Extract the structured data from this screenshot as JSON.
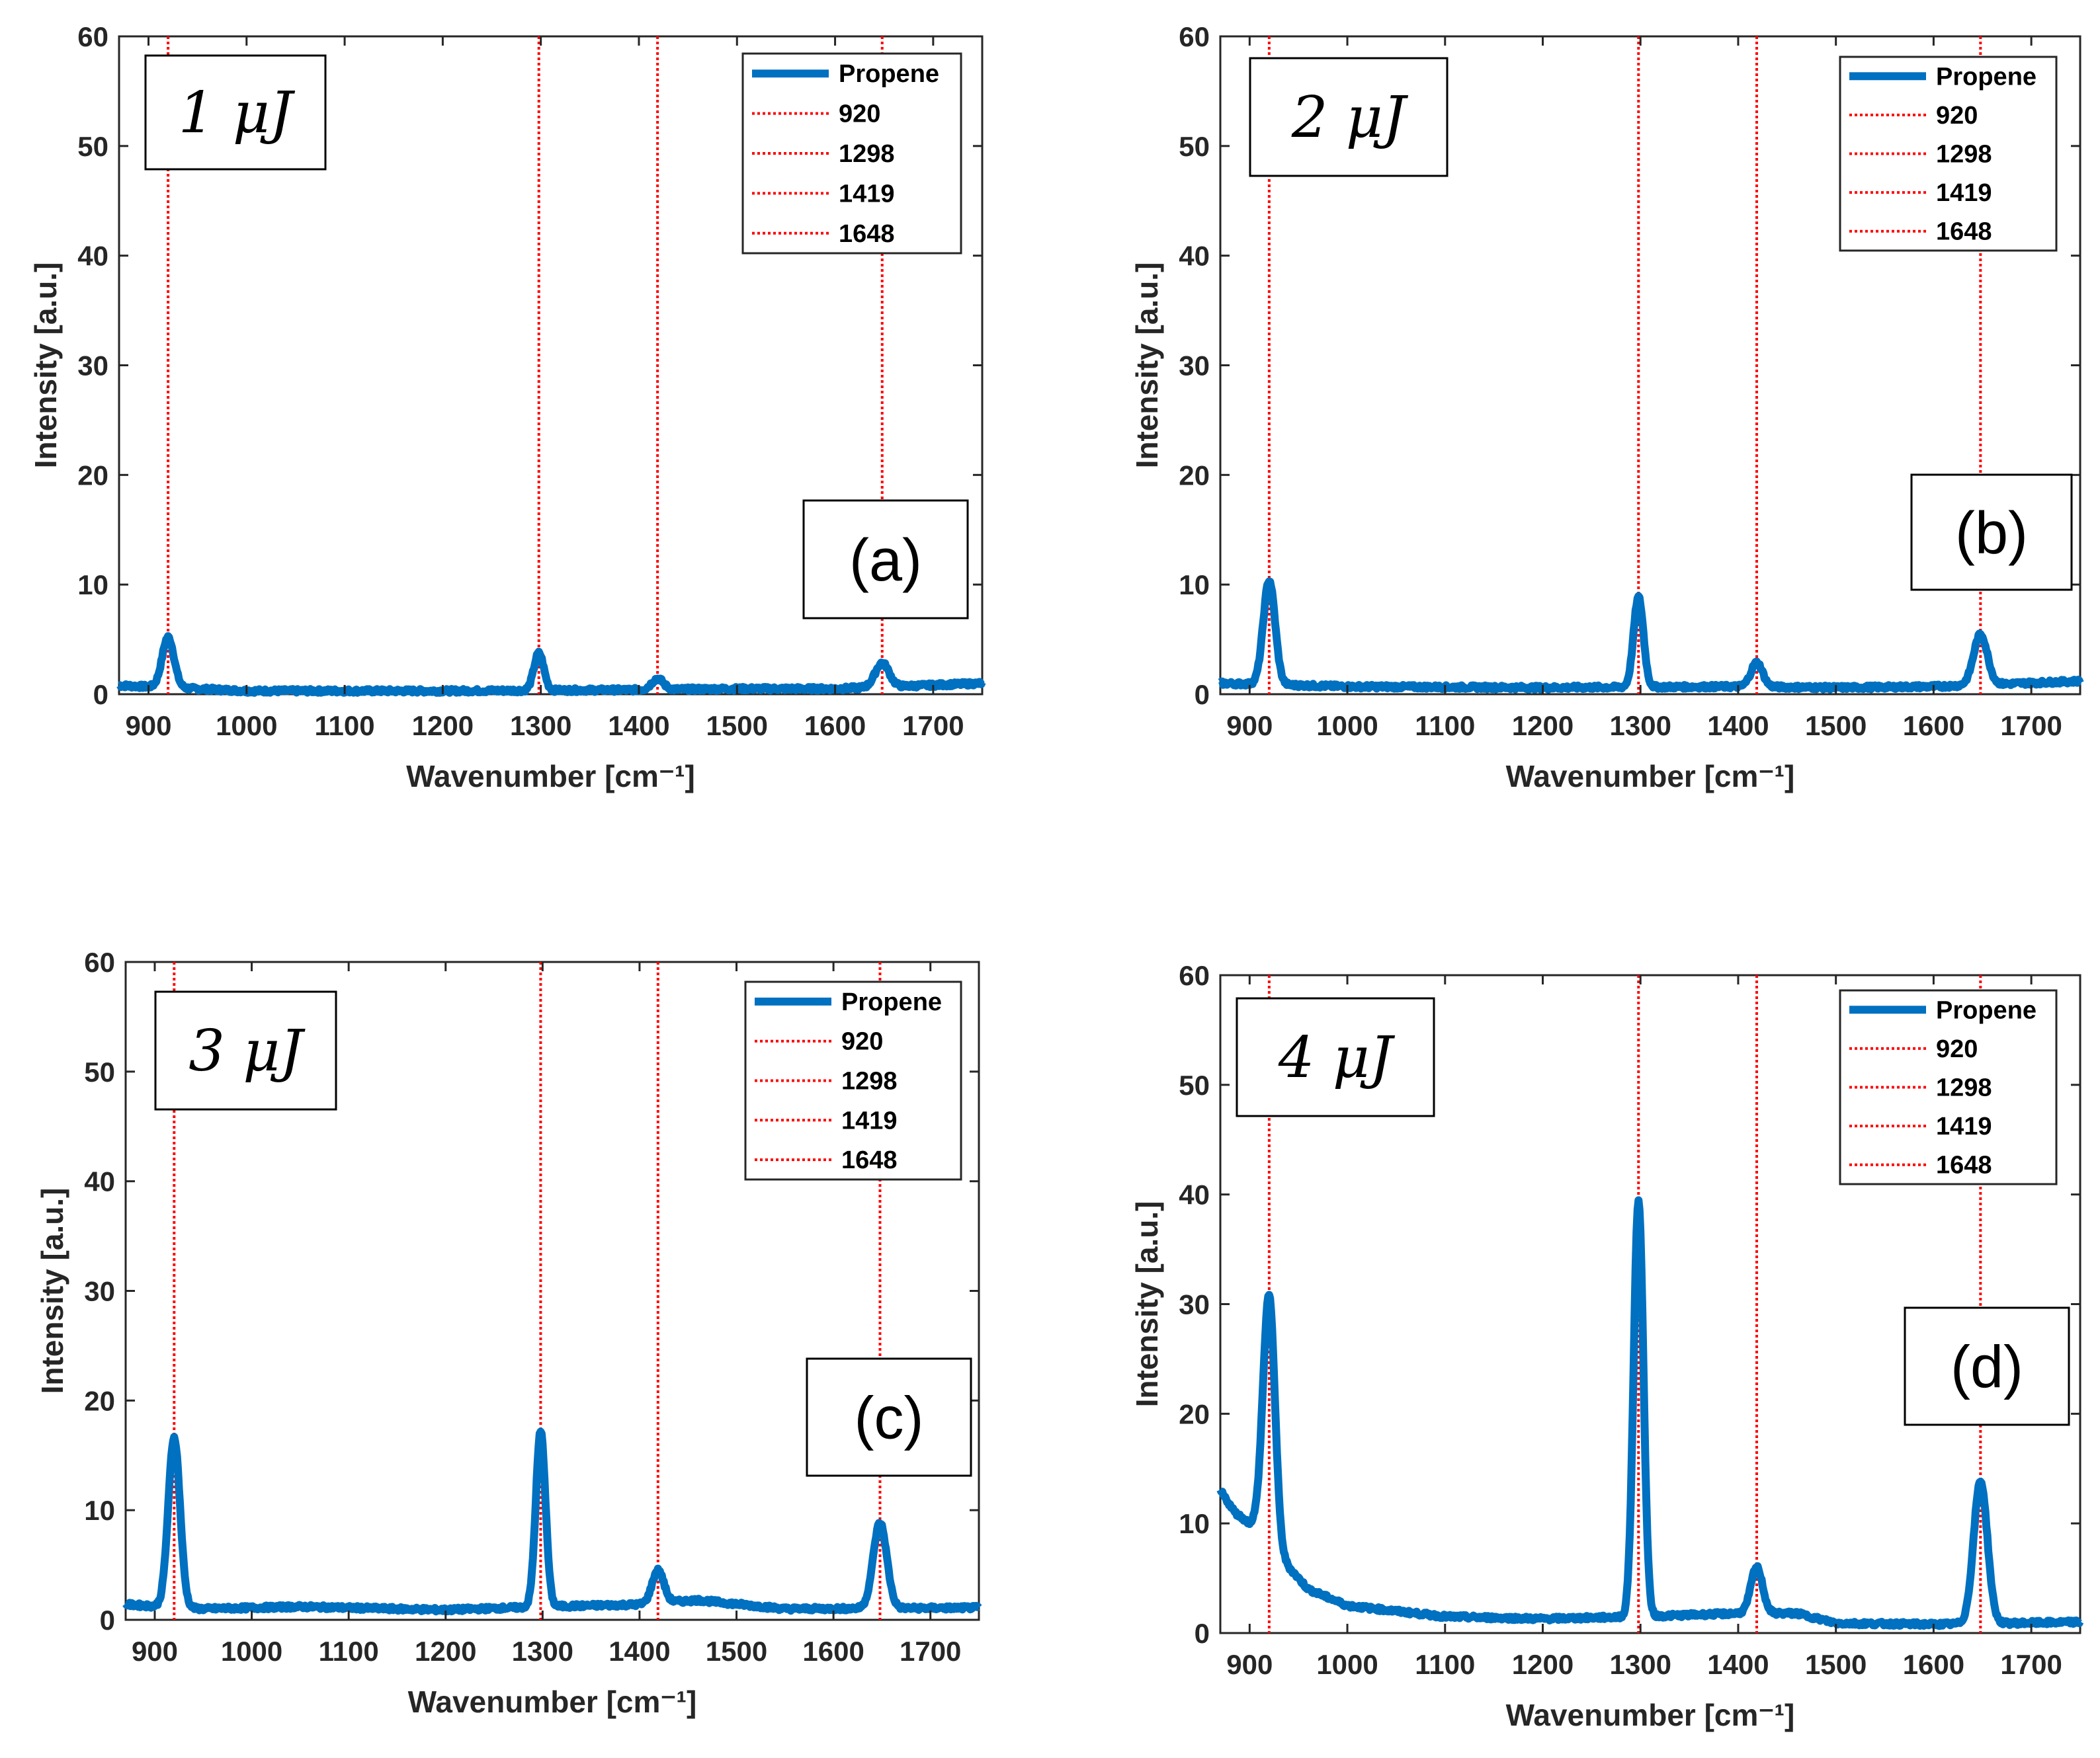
{
  "figure": {
    "series_color": "#0070C0",
    "ref_color": "#FF0000"
  },
  "chart_data": [
    {
      "type": "line",
      "panel_label": "(a)",
      "energy_label": "1 μJ",
      "xlabel": "Wavenumber [cm⁻¹]",
      "ylabel": "Intensity [a.u.]",
      "xlim": [
        870,
        1750
      ],
      "ylim": [
        0,
        60
      ],
      "xticks": [
        900,
        1000,
        1100,
        1200,
        1300,
        1400,
        1500,
        1600,
        1700
      ],
      "yticks": [
        0,
        10,
        20,
        30,
        40,
        50,
        60
      ],
      "legend_position": "top-right",
      "legend": [
        "Propene",
        "920",
        "1298",
        "1419",
        "1648"
      ],
      "reference_lines": [
        920,
        1298,
        1419,
        1648
      ],
      "series": [
        {
          "name": "Propene",
          "baseline": [
            [
              870,
              0.8
            ],
            [
              1000,
              0.3
            ],
            [
              1200,
              0.3
            ],
            [
              1400,
              0.4
            ],
            [
              1500,
              0.5
            ],
            [
              1600,
              0.5
            ],
            [
              1750,
              1.0
            ]
          ],
          "peaks": [
            {
              "x": 920,
              "height": 4.6,
              "width": 6
            },
            {
              "x": 1298,
              "height": 3.4,
              "width": 5
            },
            {
              "x": 1419,
              "height": 1.0,
              "width": 6
            },
            {
              "x": 1648,
              "height": 2.2,
              "width": 7
            }
          ]
        }
      ]
    },
    {
      "type": "line",
      "panel_label": "(b)",
      "energy_label": "2 μJ",
      "xlabel": "Wavenumber [cm⁻¹]",
      "ylabel": "Intensity [a.u.]",
      "xlim": [
        870,
        1750
      ],
      "ylim": [
        0,
        60
      ],
      "xticks": [
        900,
        1000,
        1100,
        1200,
        1300,
        1400,
        1500,
        1600,
        1700
      ],
      "yticks": [
        0,
        10,
        20,
        30,
        40,
        50,
        60
      ],
      "legend_position": "top-right",
      "legend": [
        "Propene",
        "920",
        "1298",
        "1419",
        "1648"
      ],
      "reference_lines": [
        920,
        1298,
        1419,
        1648
      ],
      "series": [
        {
          "name": "Propene",
          "baseline": [
            [
              870,
              1.0
            ],
            [
              1000,
              0.7
            ],
            [
              1200,
              0.6
            ],
            [
              1400,
              0.7
            ],
            [
              1500,
              0.6
            ],
            [
              1600,
              0.7
            ],
            [
              1750,
              1.2
            ]
          ],
          "peaks": [
            {
              "x": 920,
              "height": 9.5,
              "width": 6
            },
            {
              "x": 1298,
              "height": 8.2,
              "width": 5
            },
            {
              "x": 1419,
              "height": 2.2,
              "width": 6
            },
            {
              "x": 1648,
              "height": 4.6,
              "width": 7
            }
          ]
        }
      ]
    },
    {
      "type": "line",
      "panel_label": "(c)",
      "energy_label": "3 μJ",
      "xlabel": "Wavenumber [cm⁻¹]",
      "ylabel": "Intensity [a.u.]",
      "xlim": [
        870,
        1750
      ],
      "ylim": [
        0,
        60
      ],
      "xticks": [
        900,
        1000,
        1100,
        1200,
        1300,
        1400,
        1500,
        1600,
        1700
      ],
      "yticks": [
        0,
        10,
        20,
        30,
        40,
        50,
        60
      ],
      "legend_position": "top-right",
      "legend": [
        "Propene",
        "920",
        "1298",
        "1419",
        "1648"
      ],
      "reference_lines": [
        920,
        1298,
        1419,
        1648
      ],
      "series": [
        {
          "name": "Propene",
          "baseline": [
            [
              870,
              1.4
            ],
            [
              950,
              1.0
            ],
            [
              1050,
              1.2
            ],
            [
              1200,
              0.9
            ],
            [
              1300,
              1.2
            ],
            [
              1400,
              1.4
            ],
            [
              1460,
              1.8
            ],
            [
              1550,
              1.0
            ],
            [
              1750,
              1.1
            ]
          ],
          "peaks": [
            {
              "x": 920,
              "height": 15.5,
              "width": 6
            },
            {
              "x": 1298,
              "height": 16.0,
              "width": 5
            },
            {
              "x": 1419,
              "height": 3.0,
              "width": 6
            },
            {
              "x": 1648,
              "height": 7.8,
              "width": 7
            }
          ]
        }
      ]
    },
    {
      "type": "line",
      "panel_label": "(d)",
      "energy_label": "4 μJ",
      "xlabel": "Wavenumber [cm⁻¹]",
      "ylabel": "Intensity [a.u.]",
      "xlim": [
        870,
        1750
      ],
      "ylim": [
        0,
        60
      ],
      "xticks": [
        900,
        1000,
        1100,
        1200,
        1300,
        1400,
        1500,
        1600,
        1700
      ],
      "yticks": [
        0,
        10,
        20,
        30,
        40,
        50,
        60
      ],
      "legend_position": "top-right",
      "legend": [
        "Propene",
        "920",
        "1298",
        "1419",
        "1648"
      ],
      "reference_lines": [
        920,
        1298,
        1419,
        1648
      ],
      "series": [
        {
          "name": "Propene",
          "baseline": [
            [
              870,
              13.0
            ],
            [
              885,
              11.0
            ],
            [
              900,
              10.0
            ],
            [
              912,
              10.3
            ],
            [
              930,
              7.0
            ],
            [
              960,
              4.0
            ],
            [
              1000,
              2.5
            ],
            [
              1100,
              1.5
            ],
            [
              1200,
              1.3
            ],
            [
              1300,
              1.5
            ],
            [
              1400,
              1.8
            ],
            [
              1460,
              1.8
            ],
            [
              1500,
              0.9
            ],
            [
              1600,
              0.8
            ],
            [
              1750,
              1.0
            ]
          ],
          "peaks": [
            {
              "x": 920,
              "height": 22.0,
              "width": 6
            },
            {
              "x": 1298,
              "height": 38.0,
              "width": 5
            },
            {
              "x": 1419,
              "height": 4.2,
              "width": 6
            },
            {
              "x": 1648,
              "height": 13.0,
              "width": 7
            }
          ]
        }
      ]
    }
  ]
}
